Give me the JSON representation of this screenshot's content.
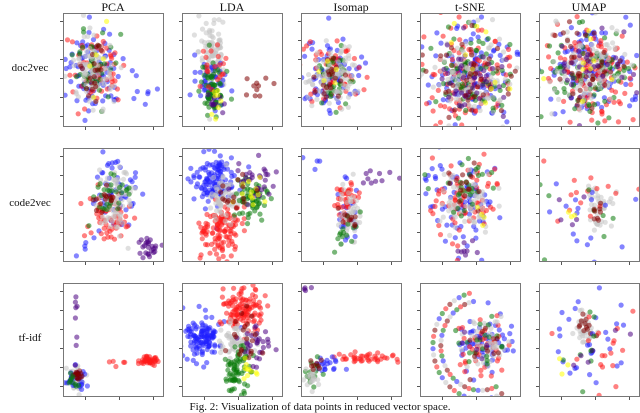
{
  "figure": {
    "caption": "Fig. 2: Visualization of data points in reduced vector space.",
    "columns": [
      "PCA",
      "LDA",
      "Isomap",
      "t-SNE",
      "UMAP"
    ],
    "rows": [
      "doc2vec",
      "code2vec",
      "tf-idf"
    ]
  },
  "colors": {
    "blue": "#1f1fff",
    "red": "#ff1a1a",
    "green": "#0a7a0a",
    "gray": "#c4c4c4",
    "maroon": "#800000",
    "purple": "#4b0082",
    "yellow": "#ffff00",
    "teal": "#0f5050"
  },
  "chart_data": {
    "type": "scatter",
    "title": "Visualization of data points in reduced vector space",
    "layout": "grid 3 rows x 5 columns",
    "row_labels": [
      "doc2vec",
      "code2vec",
      "tf-idf"
    ],
    "column_labels": [
      "PCA",
      "LDA",
      "Isomap",
      "t-SNE",
      "UMAP"
    ],
    "legend": "none (colors denote classes: blue, red, green, gray, maroon, purple, yellow)",
    "axes": "unlabeled ticks, no tick labels",
    "panels": [
      {
        "row": "doc2vec",
        "col": "PCA",
        "clusters": [
          {
            "c": "blue",
            "x": 0.3,
            "y": 0.5,
            "sx": 0.14,
            "sy": 0.18,
            "n": 90
          },
          {
            "c": "red",
            "x": 0.32,
            "y": 0.5,
            "sx": 0.15,
            "sy": 0.18,
            "n": 60
          },
          {
            "c": "green",
            "x": 0.3,
            "y": 0.5,
            "sx": 0.1,
            "sy": 0.16,
            "n": 50
          },
          {
            "c": "gray",
            "x": 0.3,
            "y": 0.52,
            "sx": 0.1,
            "sy": 0.15,
            "n": 90
          },
          {
            "c": "maroon",
            "x": 0.3,
            "y": 0.5,
            "sx": 0.08,
            "sy": 0.12,
            "n": 20
          },
          {
            "c": "yellow",
            "x": 0.25,
            "y": 0.45,
            "sx": 0.08,
            "sy": 0.15,
            "n": 5
          },
          {
            "c": "blue",
            "x": 0.8,
            "y": 0.65,
            "sx": 0.08,
            "sy": 0.08,
            "n": 8
          }
        ]
      },
      {
        "row": "doc2vec",
        "col": "LDA",
        "clusters": [
          {
            "c": "gray",
            "x": 0.3,
            "y": 0.35,
            "sx": 0.07,
            "sy": 0.18,
            "n": 110
          },
          {
            "c": "blue",
            "x": 0.3,
            "y": 0.62,
            "sx": 0.08,
            "sy": 0.1,
            "n": 50
          },
          {
            "c": "green",
            "x": 0.3,
            "y": 0.68,
            "sx": 0.06,
            "sy": 0.1,
            "n": 60
          },
          {
            "c": "red",
            "x": 0.3,
            "y": 0.5,
            "sx": 0.08,
            "sy": 0.1,
            "n": 20
          },
          {
            "c": "purple",
            "x": 0.3,
            "y": 0.78,
            "sx": 0.05,
            "sy": 0.05,
            "n": 10
          },
          {
            "c": "yellow",
            "x": 0.33,
            "y": 0.8,
            "sx": 0.04,
            "sy": 0.1,
            "n": 8
          },
          {
            "c": "maroon",
            "x": 0.7,
            "y": 0.6,
            "sx": 0.15,
            "sy": 0.08,
            "n": 10
          }
        ]
      },
      {
        "row": "doc2vec",
        "col": "Isomap",
        "clusters": [
          {
            "c": "blue",
            "x": 0.3,
            "y": 0.55,
            "sx": 0.16,
            "sy": 0.18,
            "n": 90
          },
          {
            "c": "red",
            "x": 0.3,
            "y": 0.55,
            "sx": 0.15,
            "sy": 0.16,
            "n": 50
          },
          {
            "c": "green",
            "x": 0.28,
            "y": 0.55,
            "sx": 0.1,
            "sy": 0.14,
            "n": 40
          },
          {
            "c": "gray",
            "x": 0.3,
            "y": 0.55,
            "sx": 0.12,
            "sy": 0.14,
            "n": 90
          },
          {
            "c": "maroon",
            "x": 0.3,
            "y": 0.55,
            "sx": 0.08,
            "sy": 0.1,
            "n": 20
          },
          {
            "c": "yellow",
            "x": 0.3,
            "y": 0.5,
            "sx": 0.1,
            "sy": 0.1,
            "n": 5
          }
        ]
      },
      {
        "row": "doc2vec",
        "col": "t-SNE",
        "clusters": [
          {
            "c": "blue",
            "x": 0.5,
            "y": 0.55,
            "sx": 0.22,
            "sy": 0.2,
            "n": 110
          },
          {
            "c": "red",
            "x": 0.5,
            "y": 0.55,
            "sx": 0.22,
            "sy": 0.2,
            "n": 110
          },
          {
            "c": "green",
            "x": 0.5,
            "y": 0.55,
            "sx": 0.2,
            "sy": 0.2,
            "n": 80
          },
          {
            "c": "gray",
            "x": 0.5,
            "y": 0.55,
            "sx": 0.2,
            "sy": 0.2,
            "n": 110
          },
          {
            "c": "purple",
            "x": 0.5,
            "y": 0.55,
            "sx": 0.2,
            "sy": 0.2,
            "n": 50
          },
          {
            "c": "maroon",
            "x": 0.5,
            "y": 0.55,
            "sx": 0.2,
            "sy": 0.2,
            "n": 40
          },
          {
            "c": "yellow",
            "x": 0.5,
            "y": 0.5,
            "sx": 0.18,
            "sy": 0.2,
            "n": 10
          }
        ]
      },
      {
        "row": "doc2vec",
        "col": "UMAP",
        "clusters": [
          {
            "c": "blue",
            "x": 0.5,
            "y": 0.5,
            "sx": 0.22,
            "sy": 0.22,
            "n": 110
          },
          {
            "c": "red",
            "x": 0.5,
            "y": 0.5,
            "sx": 0.22,
            "sy": 0.22,
            "n": 110
          },
          {
            "c": "green",
            "x": 0.5,
            "y": 0.55,
            "sx": 0.2,
            "sy": 0.2,
            "n": 80
          },
          {
            "c": "gray",
            "x": 0.5,
            "y": 0.5,
            "sx": 0.2,
            "sy": 0.2,
            "n": 110
          },
          {
            "c": "maroon",
            "x": 0.5,
            "y": 0.5,
            "sx": 0.2,
            "sy": 0.2,
            "n": 40
          },
          {
            "c": "purple",
            "x": 0.5,
            "y": 0.5,
            "sx": 0.2,
            "sy": 0.2,
            "n": 30
          },
          {
            "c": "yellow",
            "x": 0.5,
            "y": 0.5,
            "sx": 0.2,
            "sy": 0.2,
            "n": 10
          }
        ]
      },
      {
        "row": "code2vec",
        "col": "PCA",
        "clusters": [
          {
            "c": "blue",
            "x": 0.5,
            "y": 0.4,
            "sx": 0.14,
            "sy": 0.18,
            "n": 60
          },
          {
            "c": "red",
            "x": 0.45,
            "y": 0.62,
            "sx": 0.1,
            "sy": 0.1,
            "n": 60
          },
          {
            "c": "gray",
            "x": 0.52,
            "y": 0.45,
            "sx": 0.08,
            "sy": 0.16,
            "n": 80
          },
          {
            "c": "green",
            "x": 0.45,
            "y": 0.4,
            "sx": 0.1,
            "sy": 0.08,
            "n": 30
          },
          {
            "c": "maroon",
            "x": 0.42,
            "y": 0.45,
            "sx": 0.06,
            "sy": 0.05,
            "n": 15
          },
          {
            "c": "purple",
            "x": 0.85,
            "y": 0.88,
            "sx": 0.05,
            "sy": 0.05,
            "n": 25
          },
          {
            "c": "blue",
            "x": 0.2,
            "y": 0.85,
            "sx": 0.05,
            "sy": 0.08,
            "n": 4
          }
        ]
      },
      {
        "row": "code2vec",
        "col": "LDA",
        "clusters": [
          {
            "c": "blue",
            "x": 0.3,
            "y": 0.28,
            "sx": 0.11,
            "sy": 0.12,
            "n": 130
          },
          {
            "c": "red",
            "x": 0.38,
            "y": 0.72,
            "sx": 0.1,
            "sy": 0.12,
            "n": 120
          },
          {
            "c": "gray",
            "x": 0.43,
            "y": 0.45,
            "sx": 0.08,
            "sy": 0.1,
            "n": 70
          },
          {
            "c": "green",
            "x": 0.7,
            "y": 0.45,
            "sx": 0.09,
            "sy": 0.1,
            "n": 60
          },
          {
            "c": "purple",
            "x": 0.7,
            "y": 0.3,
            "sx": 0.1,
            "sy": 0.08,
            "n": 30
          },
          {
            "c": "yellow",
            "x": 0.68,
            "y": 0.4,
            "sx": 0.06,
            "sy": 0.08,
            "n": 12
          },
          {
            "c": "maroon",
            "x": 0.5,
            "y": 0.38,
            "sx": 0.1,
            "sy": 0.1,
            "n": 15
          }
        ]
      },
      {
        "row": "code2vec",
        "col": "Isomap",
        "clusters": [
          {
            "c": "blue",
            "x": 0.45,
            "y": 0.6,
            "sx": 0.06,
            "sy": 0.18,
            "n": 25
          },
          {
            "c": "red",
            "x": 0.45,
            "y": 0.45,
            "sx": 0.05,
            "sy": 0.1,
            "n": 40
          },
          {
            "c": "gray",
            "x": 0.48,
            "y": 0.6,
            "sx": 0.06,
            "sy": 0.12,
            "n": 50
          },
          {
            "c": "green",
            "x": 0.45,
            "y": 0.7,
            "sx": 0.06,
            "sy": 0.1,
            "n": 15
          },
          {
            "c": "maroon",
            "x": 0.48,
            "y": 0.6,
            "sx": 0.04,
            "sy": 0.08,
            "n": 10
          },
          {
            "c": "purple",
            "x": 0.75,
            "y": 0.25,
            "sx": 0.1,
            "sy": 0.05,
            "n": 10
          },
          {
            "c": "blue",
            "x": 0.1,
            "y": 0.1,
            "sx": 0.05,
            "sy": 0.05,
            "n": 4
          }
        ]
      },
      {
        "row": "code2vec",
        "col": "t-SNE",
        "clusters": [
          {
            "c": "blue",
            "x": 0.45,
            "y": 0.45,
            "sx": 0.2,
            "sy": 0.2,
            "n": 80
          },
          {
            "c": "red",
            "x": 0.45,
            "y": 0.4,
            "sx": 0.2,
            "sy": 0.18,
            "n": 70
          },
          {
            "c": "gray",
            "x": 0.45,
            "y": 0.45,
            "sx": 0.15,
            "sy": 0.15,
            "n": 70
          },
          {
            "c": "green",
            "x": 0.45,
            "y": 0.4,
            "sx": 0.15,
            "sy": 0.15,
            "n": 30
          },
          {
            "c": "maroon",
            "x": 0.45,
            "y": 0.4,
            "sx": 0.12,
            "sy": 0.12,
            "n": 15
          },
          {
            "c": "purple",
            "x": 0.45,
            "y": 0.9,
            "sx": 0.04,
            "sy": 0.04,
            "n": 8
          },
          {
            "c": "yellow",
            "x": 0.6,
            "y": 0.6,
            "sx": 0.05,
            "sy": 0.05,
            "n": 4
          }
        ]
      },
      {
        "row": "code2vec",
        "col": "UMAP",
        "clusters": [
          {
            "c": "gray",
            "x": 0.58,
            "y": 0.52,
            "sx": 0.06,
            "sy": 0.08,
            "n": 40
          },
          {
            "c": "blue",
            "x": 0.55,
            "y": 0.55,
            "sx": 0.25,
            "sy": 0.22,
            "n": 20
          },
          {
            "c": "red",
            "x": 0.5,
            "y": 0.45,
            "sx": 0.22,
            "sy": 0.2,
            "n": 15
          },
          {
            "c": "green",
            "x": 0.45,
            "y": 0.6,
            "sx": 0.25,
            "sy": 0.2,
            "n": 8
          },
          {
            "c": "maroon",
            "x": 0.58,
            "y": 0.55,
            "sx": 0.04,
            "sy": 0.05,
            "n": 8
          },
          {
            "c": "purple",
            "x": 0.4,
            "y": 0.65,
            "sx": 0.15,
            "sy": 0.2,
            "n": 5
          },
          {
            "c": "yellow",
            "x": 0.28,
            "y": 0.55,
            "sx": 0.03,
            "sy": 0.03,
            "n": 3
          }
        ]
      },
      {
        "row": "tf-idf",
        "col": "PCA",
        "clusters": [
          {
            "c": "gray",
            "x": 0.12,
            "y": 0.85,
            "sx": 0.04,
            "sy": 0.05,
            "n": 50
          },
          {
            "c": "blue",
            "x": 0.13,
            "y": 0.84,
            "sx": 0.06,
            "sy": 0.05,
            "n": 30
          },
          {
            "c": "maroon",
            "x": 0.14,
            "y": 0.8,
            "sx": 0.02,
            "sy": 0.03,
            "n": 15
          },
          {
            "c": "green",
            "x": 0.08,
            "y": 0.88,
            "sx": 0.03,
            "sy": 0.05,
            "n": 10
          },
          {
            "c": "purple",
            "x": 0.12,
            "y": 0.3,
            "sx": 0.01,
            "sy": 0.25,
            "n": 10
          },
          {
            "c": "red",
            "x": 0.85,
            "y": 0.68,
            "sx": 0.06,
            "sy": 0.02,
            "n": 40
          },
          {
            "c": "red",
            "x": 0.55,
            "y": 0.7,
            "sx": 0.05,
            "sy": 0.02,
            "n": 5
          }
        ]
      },
      {
        "row": "tf-idf",
        "col": "LDA",
        "clusters": [
          {
            "c": "blue",
            "x": 0.2,
            "y": 0.48,
            "sx": 0.09,
            "sy": 0.1,
            "n": 120
          },
          {
            "c": "red",
            "x": 0.6,
            "y": 0.22,
            "sx": 0.1,
            "sy": 0.1,
            "n": 120
          },
          {
            "c": "gray",
            "x": 0.55,
            "y": 0.5,
            "sx": 0.08,
            "sy": 0.08,
            "n": 70
          },
          {
            "c": "green",
            "x": 0.55,
            "y": 0.78,
            "sx": 0.07,
            "sy": 0.1,
            "n": 70
          },
          {
            "c": "purple",
            "x": 0.75,
            "y": 0.55,
            "sx": 0.08,
            "sy": 0.1,
            "n": 30
          },
          {
            "c": "maroon",
            "x": 0.65,
            "y": 0.45,
            "sx": 0.1,
            "sy": 0.12,
            "n": 20
          },
          {
            "c": "yellow",
            "x": 0.68,
            "y": 0.78,
            "sx": 0.04,
            "sy": 0.05,
            "n": 10
          }
        ]
      },
      {
        "row": "tf-idf",
        "col": "Isomap",
        "clusters": [
          {
            "c": "red",
            "x": 0.65,
            "y": 0.66,
            "sx": 0.18,
            "sy": 0.02,
            "n": 40
          },
          {
            "c": "blue",
            "x": 0.25,
            "y": 0.72,
            "sx": 0.08,
            "sy": 0.03,
            "n": 20
          },
          {
            "c": "green",
            "x": 0.12,
            "y": 0.8,
            "sx": 0.05,
            "sy": 0.06,
            "n": 15
          },
          {
            "c": "gray",
            "x": 0.1,
            "y": 0.85,
            "sx": 0.04,
            "sy": 0.06,
            "n": 20
          },
          {
            "c": "maroon",
            "x": 0.15,
            "y": 0.73,
            "sx": 0.04,
            "sy": 0.03,
            "n": 8
          },
          {
            "c": "purple",
            "x": 0.05,
            "y": 0.05,
            "sx": 0.02,
            "sy": 0.02,
            "n": 4
          }
        ]
      },
      {
        "row": "tf-idf",
        "col": "t-SNE",
        "clusters": [
          {
            "c": "blue",
            "x": 0.65,
            "y": 0.55,
            "sx": 0.14,
            "sy": 0.13,
            "n": 60
          },
          {
            "c": "red",
            "x": 0.6,
            "y": 0.55,
            "sx": 0.14,
            "sy": 0.14,
            "n": 40
          },
          {
            "c": "gray",
            "x": 0.65,
            "y": 0.55,
            "sx": 0.1,
            "sy": 0.12,
            "n": 50
          },
          {
            "c": "green",
            "x": 0.6,
            "y": 0.55,
            "sx": 0.12,
            "sy": 0.12,
            "n": 20
          },
          {
            "c": "maroon",
            "x": 0.62,
            "y": 0.55,
            "sx": 0.1,
            "sy": 0.1,
            "n": 12
          },
          {
            "c": "purple",
            "x": 0.55,
            "y": 0.55,
            "sx": 0.1,
            "sy": 0.1,
            "n": 6
          }
        ],
        "arc": {
          "cx": 0.6,
          "cy": 0.55,
          "radii": [
            0.4,
            0.48
          ],
          "from": 100,
          "to": 300,
          "n": 60
        }
      },
      {
        "row": "tf-idf",
        "col": "UMAP",
        "clusters": [
          {
            "c": "gray",
            "x": 0.45,
            "y": 0.4,
            "sx": 0.06,
            "sy": 0.08,
            "n": 35
          },
          {
            "c": "maroon",
            "x": 0.45,
            "y": 0.38,
            "sx": 0.05,
            "sy": 0.06,
            "n": 12
          },
          {
            "c": "blue",
            "x": 0.5,
            "y": 0.55,
            "sx": 0.25,
            "sy": 0.22,
            "n": 30
          },
          {
            "c": "red",
            "x": 0.5,
            "y": 0.5,
            "sx": 0.22,
            "sy": 0.25,
            "n": 20
          },
          {
            "c": "green",
            "x": 0.5,
            "y": 0.5,
            "sx": 0.25,
            "sy": 0.25,
            "n": 10
          },
          {
            "c": "purple",
            "x": 0.5,
            "y": 0.5,
            "sx": 0.2,
            "sy": 0.2,
            "n": 6
          },
          {
            "c": "yellow",
            "x": 0.25,
            "y": 0.72,
            "sx": 0.05,
            "sy": 0.03,
            "n": 3
          }
        ]
      }
    ]
  }
}
